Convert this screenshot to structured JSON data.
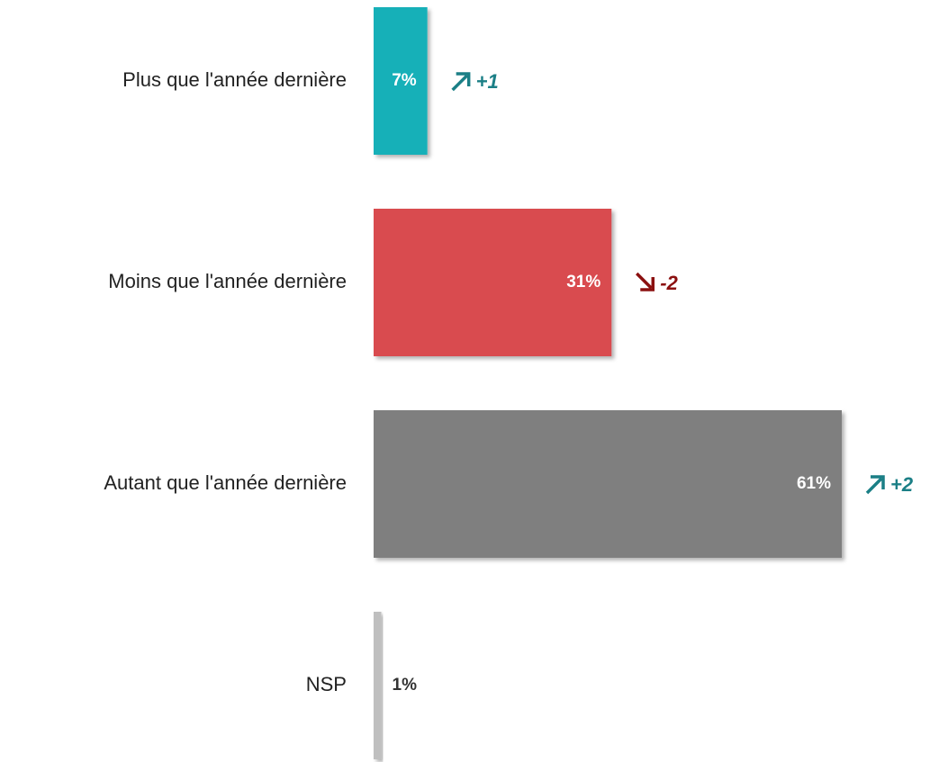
{
  "chart_data": {
    "type": "hbar",
    "categories": [
      "Plus que l'année dernière",
      "Moins que l'année dernière",
      "Autant que l'année dernière",
      "NSP"
    ],
    "values": [
      7,
      31,
      61,
      1
    ],
    "value_labels": [
      "7%",
      "31%",
      "61%",
      "1%"
    ],
    "colors": [
      "#12b0b8",
      "#d94c50",
      "#7f7f7f",
      "#bfbfbf"
    ],
    "changes": [
      1,
      -2,
      2,
      null
    ],
    "change_labels": [
      "+1",
      "-2",
      "+2",
      null
    ],
    "up_color": "#1b7f86",
    "down_color": "#8b1010"
  }
}
